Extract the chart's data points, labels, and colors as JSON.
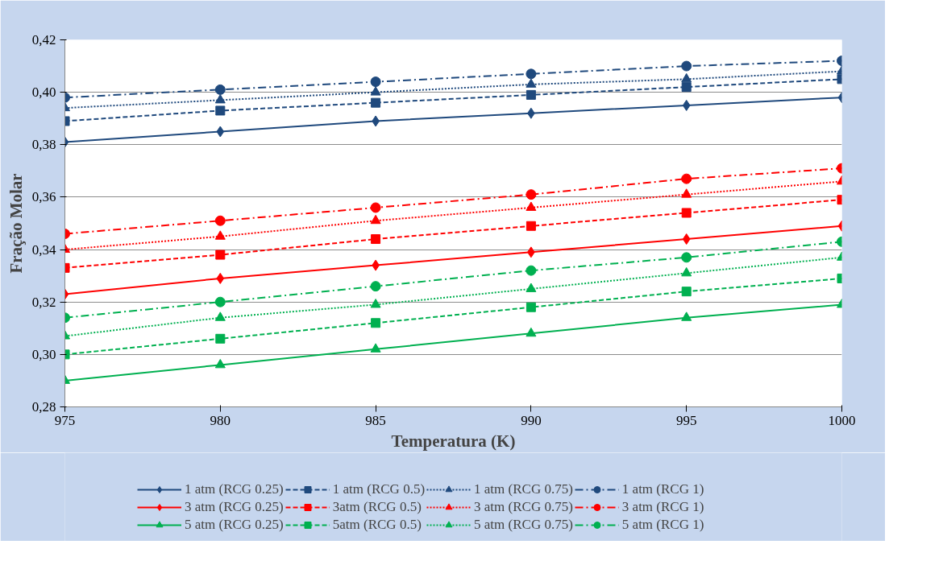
{
  "chart_data": {
    "type": "line",
    "xlabel": "Temperatura (K)",
    "ylabel": "Fração Molar",
    "x": [
      975,
      980,
      985,
      990,
      995,
      1000
    ],
    "xlim": [
      975,
      1000
    ],
    "xticks": [
      975,
      980,
      985,
      990,
      995,
      1000
    ],
    "ylim": [
      0.28,
      0.42
    ],
    "yticks": [
      {
        "value": 0.28,
        "label": "0,28"
      },
      {
        "value": 0.3,
        "label": "0,30"
      },
      {
        "value": 0.32,
        "label": "0,32"
      },
      {
        "value": 0.34,
        "label": "0,34"
      },
      {
        "value": 0.36,
        "label": "0,36"
      },
      {
        "value": 0.38,
        "label": "0,38"
      },
      {
        "value": 0.4,
        "label": "0,40"
      },
      {
        "value": 0.42,
        "label": "0,42"
      }
    ],
    "grid": "y",
    "legend": "bottom",
    "series": [
      {
        "name": "1 atm (RCG 0.25)",
        "color": "#1f497d",
        "marker": "diamond",
        "line_style": "solid",
        "values": [
          0.381,
          0.385,
          0.389,
          0.392,
          0.395,
          0.398
        ]
      },
      {
        "name": "1 atm (RCG 0.5)",
        "color": "#1f497d",
        "marker": "square",
        "line_style": "dashed",
        "values": [
          0.389,
          0.393,
          0.396,
          0.399,
          0.402,
          0.405
        ]
      },
      {
        "name": "1 atm (RCG 0.75)",
        "color": "#1f497d",
        "marker": "triangle",
        "line_style": "dotted",
        "values": [
          0.394,
          0.397,
          0.4,
          0.403,
          0.405,
          0.408
        ]
      },
      {
        "name": "1 atm (RCG 1)",
        "color": "#1f497d",
        "marker": "circle",
        "line_style": "dashdot",
        "values": [
          0.398,
          0.401,
          0.404,
          0.407,
          0.41,
          0.412
        ]
      },
      {
        "name": "3 atm (RCG 0.25)",
        "color": "#ff0000",
        "marker": "diamond",
        "line_style": "solid",
        "values": [
          0.323,
          0.329,
          0.334,
          0.339,
          0.344,
          0.349
        ]
      },
      {
        "name": "3atm (RCG 0.5)",
        "color": "#ff0000",
        "marker": "square",
        "line_style": "dashed",
        "values": [
          0.333,
          0.338,
          0.344,
          0.349,
          0.354,
          0.359
        ]
      },
      {
        "name": "3 atm (RCG 0.75)",
        "color": "#ff0000",
        "marker": "triangle",
        "line_style": "dotted",
        "values": [
          0.34,
          0.345,
          0.351,
          0.356,
          0.361,
          0.366
        ]
      },
      {
        "name": "3 atm (RCG 1)",
        "color": "#ff0000",
        "marker": "circle",
        "line_style": "dashdot",
        "values": [
          0.346,
          0.351,
          0.356,
          0.361,
          0.367,
          0.371
        ]
      },
      {
        "name": "5 atm (RCG 0.25)",
        "color": "#00b050",
        "marker": "triangle",
        "line_style": "solid",
        "values": [
          0.29,
          0.296,
          0.302,
          0.308,
          0.314,
          0.319
        ]
      },
      {
        "name": "5atm (RCG 0.5)",
        "color": "#00b050",
        "marker": "square",
        "line_style": "dashed",
        "values": [
          0.3,
          0.306,
          0.312,
          0.318,
          0.324,
          0.329
        ]
      },
      {
        "name": "5 atm (RCG 0.75)",
        "color": "#00b050",
        "marker": "triangle",
        "line_style": "dotted",
        "values": [
          0.307,
          0.314,
          0.319,
          0.325,
          0.331,
          0.337
        ]
      },
      {
        "name": "5 atm (RCG 1)",
        "color": "#00b050",
        "marker": "circle",
        "line_style": "dashdot",
        "values": [
          0.314,
          0.32,
          0.326,
          0.332,
          0.337,
          0.343
        ]
      }
    ]
  }
}
